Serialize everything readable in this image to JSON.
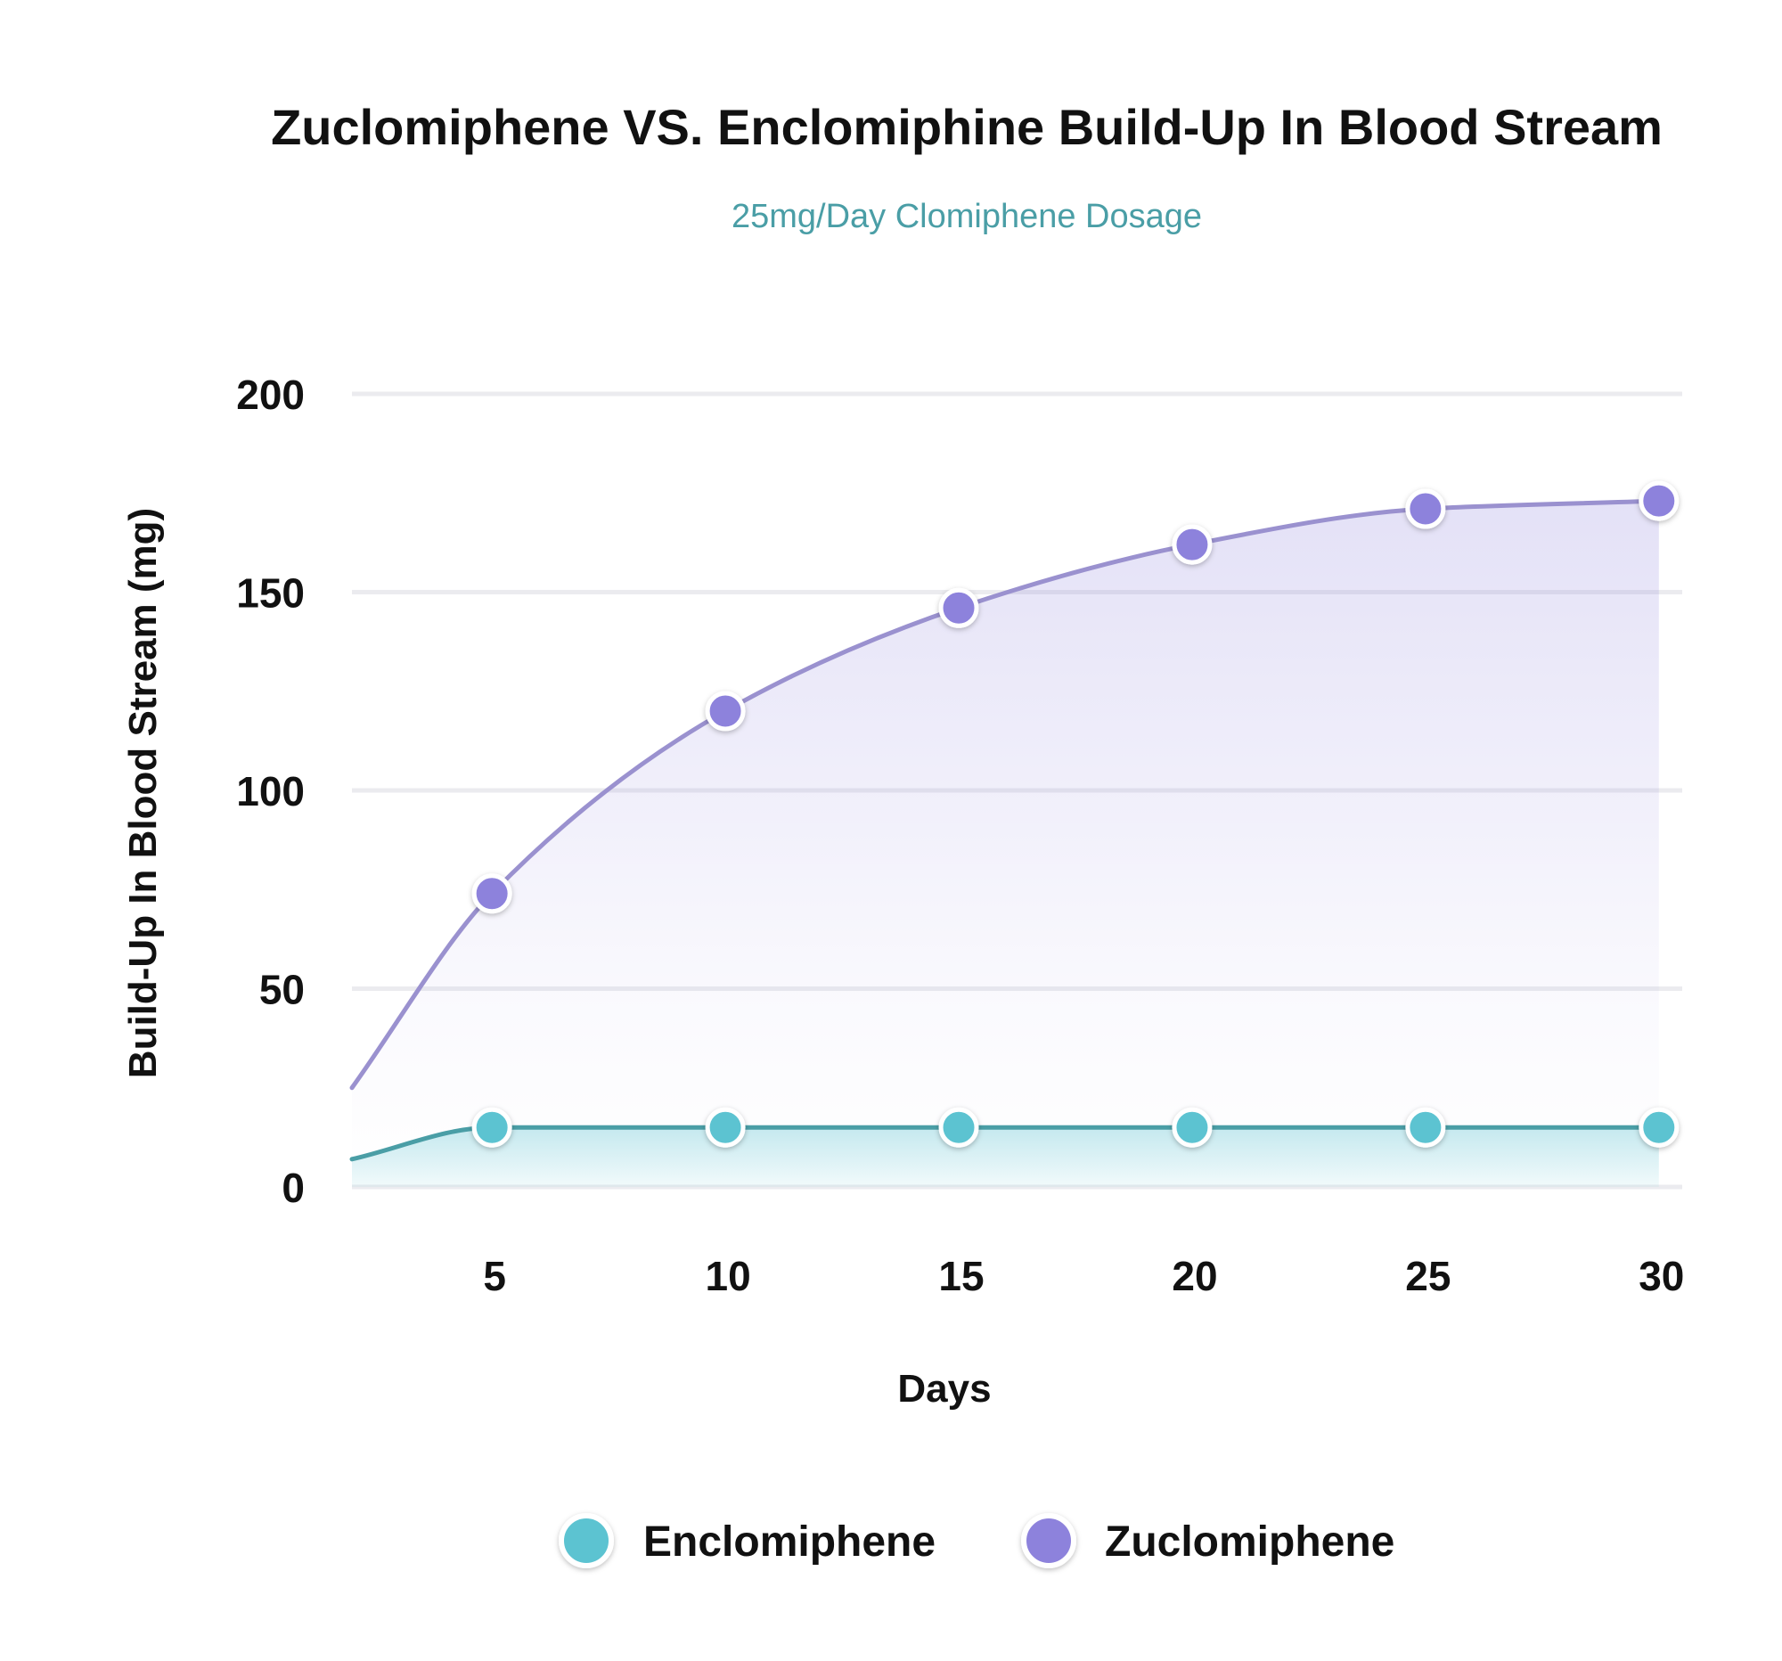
{
  "chart_data": {
    "type": "area",
    "title": "Zuclomiphene VS. Enclomiphine Build-Up In Blood Stream",
    "subtitle": "25mg/Day Clomiphene Dosage",
    "xlabel": "Days",
    "ylabel": "Build-Up In Blood Stream (mg)",
    "x": [
      5,
      10,
      15,
      20,
      25,
      30
    ],
    "x_ticks": [
      "5",
      "10",
      "15",
      "20",
      "25",
      "30"
    ],
    "y_ticks": [
      "0",
      "50",
      "100",
      "150",
      "200"
    ],
    "xlim": [
      2,
      30.5
    ],
    "ylim": [
      0,
      200
    ],
    "grid": true,
    "legend_position": "bottom",
    "series": [
      {
        "name": "Enclomiphene",
        "values": [
          15,
          15,
          15,
          15,
          15,
          15
        ],
        "start_value": 7,
        "color": "#5bc3d1",
        "line_color": "#4a9ea6"
      },
      {
        "name": "Zuclomiphene",
        "values": [
          74,
          120,
          146,
          162,
          171,
          173
        ],
        "start_value": 25,
        "color": "#8d82dc",
        "line_color": "#9a91cf"
      }
    ]
  }
}
